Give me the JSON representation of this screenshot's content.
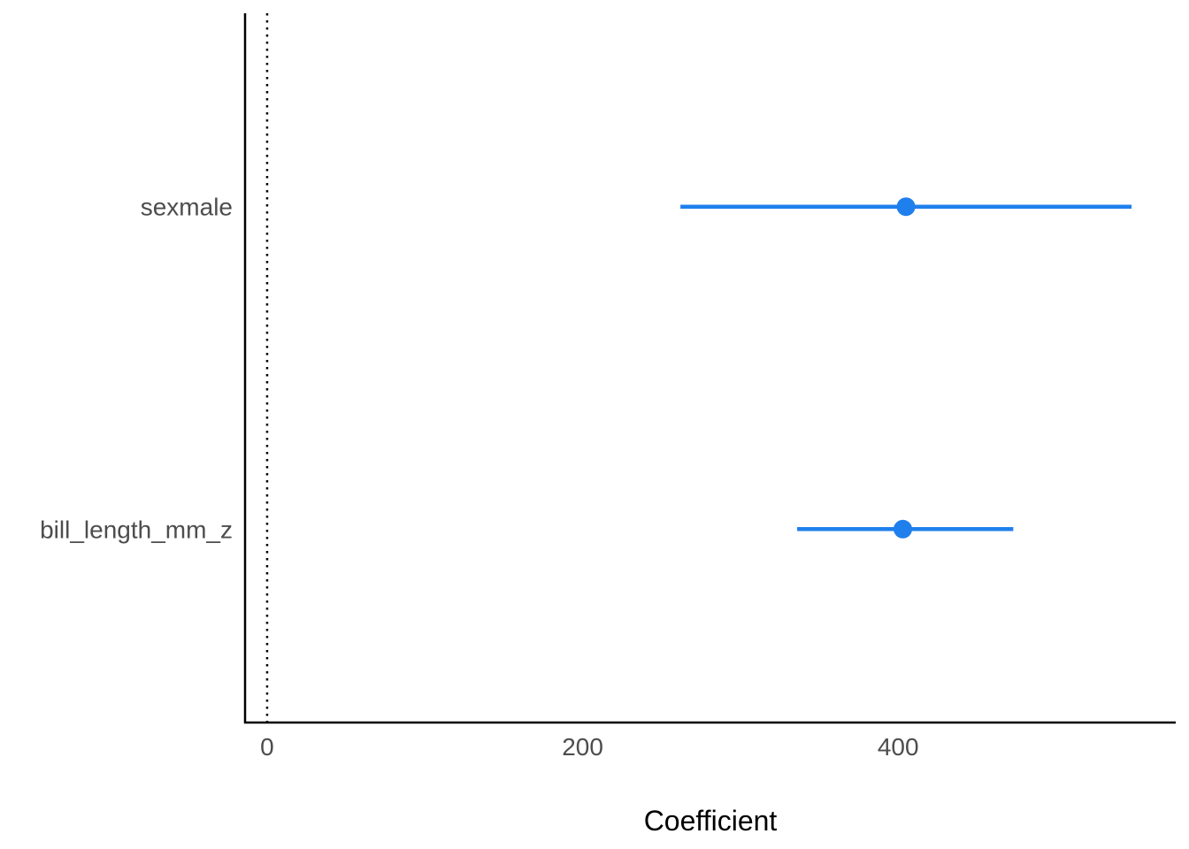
{
  "chart_data": {
    "type": "scatter",
    "subtype": "coefficient-plot",
    "title": "",
    "xlabel": "Coefficient",
    "ylabel": "",
    "xlim": [
      -14,
      576
    ],
    "x_ticks": [
      0,
      200,
      400
    ],
    "x_tick_labels": [
      "0",
      "200",
      "400"
    ],
    "reference_line": {
      "x": 0,
      "style": "dotted"
    },
    "grid": false,
    "legend": "none",
    "color": "#1f7fec",
    "categories": [
      "sexmale",
      "bill_length_mm_z"
    ],
    "points": [
      {
        "term": "sexmale",
        "estimate": 405,
        "conf_low": 262,
        "conf_high": 548
      },
      {
        "term": "bill_length_mm_z",
        "estimate": 403,
        "conf_low": 336,
        "conf_high": 473
      }
    ]
  }
}
